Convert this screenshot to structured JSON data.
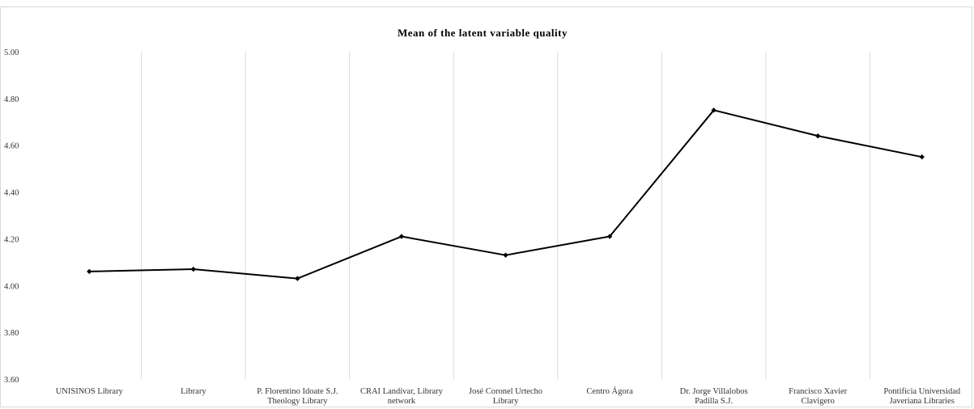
{
  "chart_data": {
    "type": "line",
    "title": "Mean of the latent variable quality",
    "xlabel": "",
    "ylabel": "",
    "ylim": [
      3.6,
      5.0
    ],
    "y_ticks": [
      "3.60",
      "3.80",
      "4.00",
      "4.20",
      "4.40",
      "4.60",
      "4.80",
      "5.00"
    ],
    "categories": [
      [
        "UNISINOS Library"
      ],
      [
        "Library"
      ],
      [
        "P. Florentino Idoate S.J.",
        "Theology Library"
      ],
      [
        "CRAI Landivar, Library",
        "network"
      ],
      [
        "José Coronel Urtecho",
        "Library"
      ],
      [
        "Centro Ágora"
      ],
      [
        "Dr. Jorge Villalobos",
        "Padilla S.J."
      ],
      [
        "Francisco Xavier",
        "Clavigero"
      ],
      [
        "Pontificia Universidad",
        "Javeriana Libraries"
      ]
    ],
    "values": [
      4.06,
      4.07,
      4.03,
      4.21,
      4.13,
      4.21,
      4.75,
      4.64,
      4.55
    ],
    "grid": "vertical",
    "legend": "none",
    "colors": {
      "line": "#000000",
      "grid": "#d9d9d9"
    }
  }
}
